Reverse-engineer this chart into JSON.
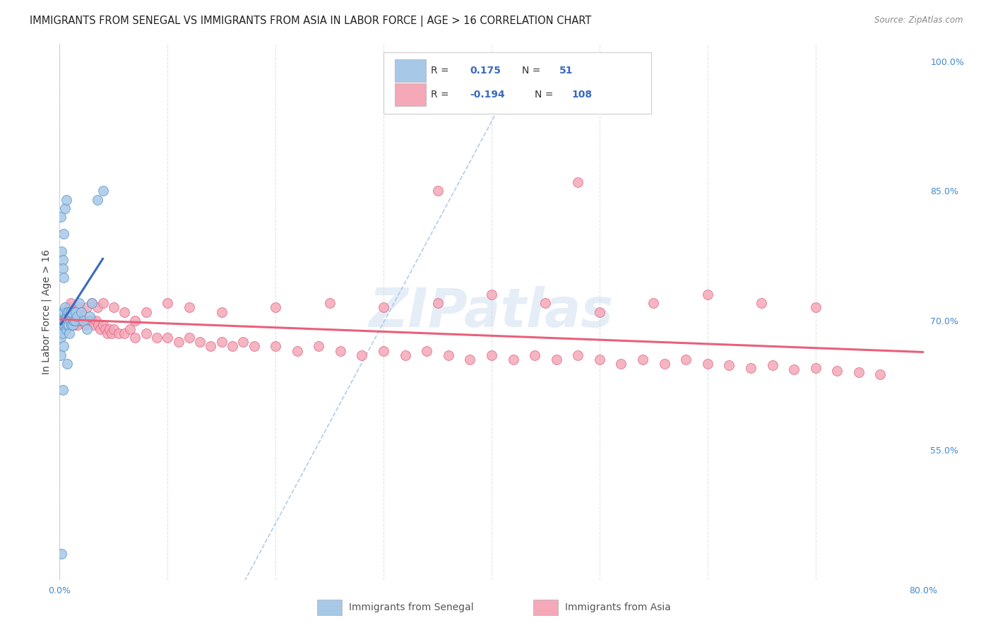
{
  "title": "IMMIGRANTS FROM SENEGAL VS IMMIGRANTS FROM ASIA IN LABOR FORCE | AGE > 16 CORRELATION CHART",
  "source": "Source: ZipAtlas.com",
  "ylabel": "In Labor Force | Age > 16",
  "watermark": "ZIPatlas",
  "legend_blue_label": "Immigrants from Senegal",
  "legend_pink_label": "Immigrants from Asia",
  "xlim": [
    0.0,
    0.8
  ],
  "ylim": [
    0.4,
    1.02
  ],
  "xtick_positions": [
    0.0,
    0.1,
    0.2,
    0.3,
    0.4,
    0.5,
    0.6,
    0.7,
    0.8
  ],
  "xticklabels": [
    "0.0%",
    "",
    "",
    "",
    "",
    "",
    "",
    "",
    "80.0%"
  ],
  "yticks_right": [
    0.55,
    0.7,
    0.85,
    1.0
  ],
  "ytick_right_labels": [
    "55.0%",
    "70.0%",
    "85.0%",
    "100.0%"
  ],
  "scatter_blue_x": [
    0.001,
    0.001,
    0.002,
    0.002,
    0.003,
    0.003,
    0.003,
    0.004,
    0.004,
    0.004,
    0.005,
    0.005,
    0.005,
    0.006,
    0.006,
    0.006,
    0.007,
    0.007,
    0.007,
    0.008,
    0.008,
    0.008,
    0.009,
    0.009,
    0.01,
    0.01,
    0.011,
    0.012,
    0.013,
    0.014,
    0.015,
    0.016,
    0.018,
    0.02,
    0.022,
    0.025,
    0.028,
    0.03,
    0.035,
    0.04,
    0.001,
    0.002,
    0.003,
    0.003,
    0.004,
    0.004,
    0.005,
    0.006,
    0.007,
    0.002,
    0.003
  ],
  "scatter_blue_y": [
    0.68,
    0.66,
    0.7,
    0.69,
    0.71,
    0.7,
    0.685,
    0.695,
    0.71,
    0.67,
    0.695,
    0.7,
    0.715,
    0.7,
    0.705,
    0.69,
    0.705,
    0.695,
    0.71,
    0.7,
    0.71,
    0.695,
    0.705,
    0.685,
    0.7,
    0.71,
    0.695,
    0.695,
    0.7,
    0.7,
    0.71,
    0.705,
    0.72,
    0.71,
    0.7,
    0.69,
    0.705,
    0.72,
    0.84,
    0.85,
    0.82,
    0.78,
    0.77,
    0.76,
    0.75,
    0.8,
    0.83,
    0.84,
    0.65,
    0.43,
    0.62
  ],
  "scatter_pink_x": [
    0.002,
    0.003,
    0.004,
    0.005,
    0.006,
    0.007,
    0.008,
    0.009,
    0.01,
    0.011,
    0.012,
    0.013,
    0.014,
    0.015,
    0.016,
    0.017,
    0.018,
    0.019,
    0.02,
    0.022,
    0.024,
    0.026,
    0.028,
    0.03,
    0.032,
    0.034,
    0.036,
    0.038,
    0.04,
    0.042,
    0.044,
    0.046,
    0.048,
    0.05,
    0.055,
    0.06,
    0.065,
    0.07,
    0.08,
    0.09,
    0.1,
    0.11,
    0.12,
    0.13,
    0.14,
    0.15,
    0.16,
    0.17,
    0.18,
    0.2,
    0.22,
    0.24,
    0.26,
    0.28,
    0.3,
    0.32,
    0.34,
    0.36,
    0.38,
    0.4,
    0.42,
    0.44,
    0.46,
    0.48,
    0.5,
    0.52,
    0.54,
    0.56,
    0.58,
    0.6,
    0.62,
    0.64,
    0.66,
    0.68,
    0.7,
    0.72,
    0.74,
    0.76,
    0.008,
    0.01,
    0.012,
    0.015,
    0.018,
    0.02,
    0.025,
    0.03,
    0.035,
    0.04,
    0.05,
    0.06,
    0.07,
    0.08,
    0.1,
    0.12,
    0.15,
    0.2,
    0.25,
    0.3,
    0.35,
    0.4,
    0.45,
    0.5,
    0.55,
    0.6,
    0.65,
    0.7,
    0.35,
    0.48
  ],
  "scatter_pink_y": [
    0.7,
    0.695,
    0.705,
    0.71,
    0.7,
    0.695,
    0.705,
    0.71,
    0.695,
    0.7,
    0.705,
    0.7,
    0.695,
    0.705,
    0.7,
    0.695,
    0.7,
    0.71,
    0.7,
    0.7,
    0.695,
    0.7,
    0.7,
    0.7,
    0.695,
    0.7,
    0.695,
    0.69,
    0.695,
    0.69,
    0.685,
    0.69,
    0.685,
    0.69,
    0.685,
    0.685,
    0.69,
    0.68,
    0.685,
    0.68,
    0.68,
    0.675,
    0.68,
    0.675,
    0.67,
    0.675,
    0.67,
    0.675,
    0.67,
    0.67,
    0.665,
    0.67,
    0.665,
    0.66,
    0.665,
    0.66,
    0.665,
    0.66,
    0.655,
    0.66,
    0.655,
    0.66,
    0.655,
    0.66,
    0.655,
    0.65,
    0.655,
    0.65,
    0.655,
    0.65,
    0.648,
    0.645,
    0.648,
    0.643,
    0.645,
    0.642,
    0.64,
    0.638,
    0.715,
    0.72,
    0.71,
    0.71,
    0.715,
    0.71,
    0.715,
    0.72,
    0.715,
    0.72,
    0.715,
    0.71,
    0.7,
    0.71,
    0.72,
    0.715,
    0.71,
    0.715,
    0.72,
    0.715,
    0.72,
    0.73,
    0.72,
    0.71,
    0.72,
    0.73,
    0.72,
    0.715,
    0.85,
    0.86
  ],
  "blue_scatter_color": "#a8c8e8",
  "pink_scatter_color": "#f4a8b8",
  "blue_edge_color": "#5090c8",
  "pink_edge_color": "#e06080",
  "blue_line_color": "#3a6abf",
  "pink_line_color": "#e8607a",
  "diagonal_color": "#a8c8e8",
  "grid_color": "#e0e4e8",
  "title_fontsize": 10.5,
  "source_fontsize": 8.5,
  "tick_fontsize": 9,
  "ylabel_fontsize": 10,
  "scatter_size": 100
}
